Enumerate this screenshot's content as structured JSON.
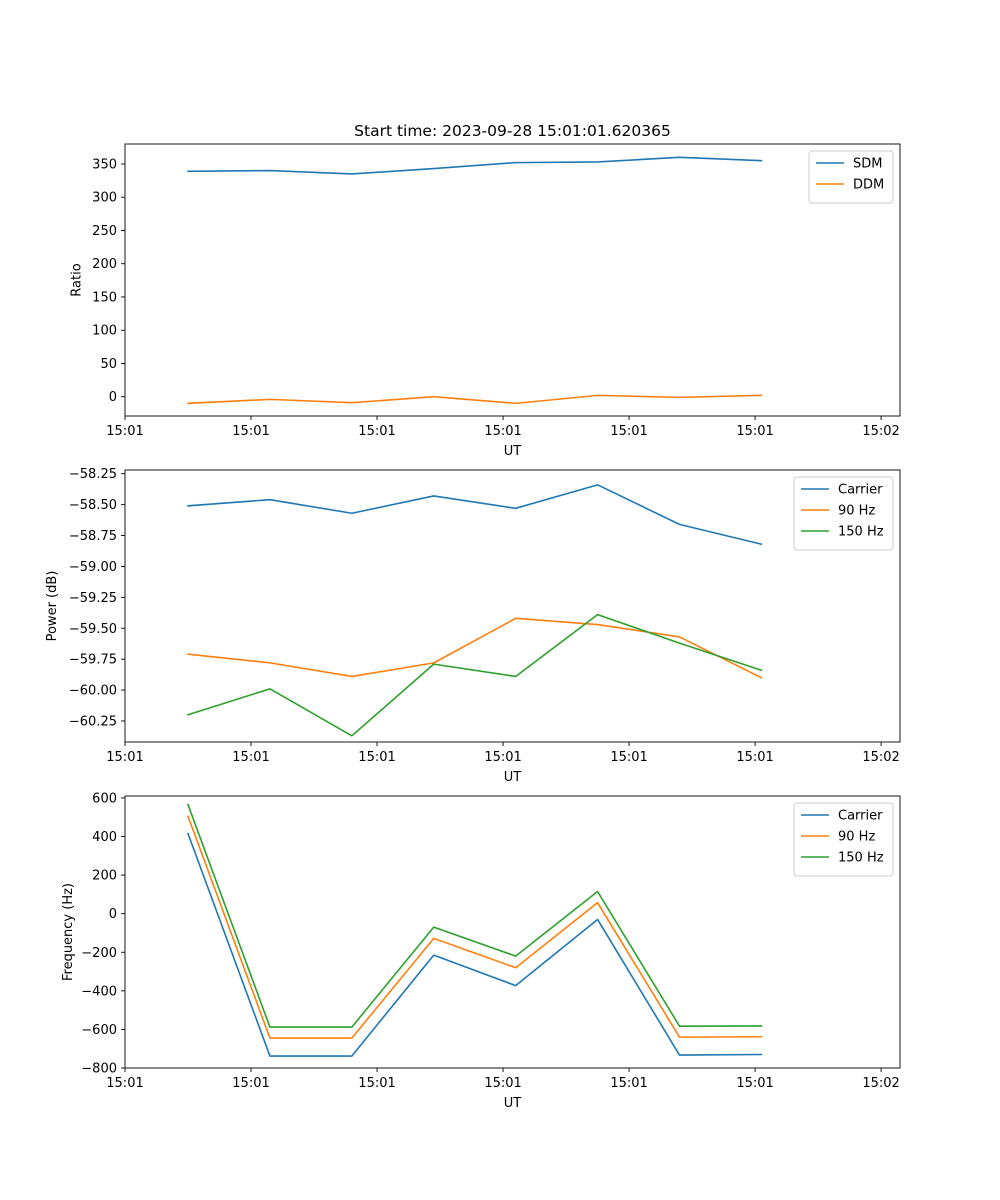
{
  "figure_title": "Start time: 2023-09-28 15:01:01.620365",
  "chart_data": [
    {
      "type": "line",
      "title": "Start time: 2023-09-28 15:01:01.620365",
      "xlabel": "UT",
      "ylabel": "Ratio",
      "xlim": [
        0,
        6.15
      ],
      "xticks": [
        0,
        1,
        2,
        3,
        4,
        5,
        6
      ],
      "xtick_labels": [
        "15:01",
        "15:01",
        "15:01",
        "15:01",
        "15:01",
        "15:01",
        "15:02"
      ],
      "ylim": [
        -29,
        380
      ],
      "yticks": [
        0,
        50,
        100,
        150,
        200,
        250,
        300,
        350
      ],
      "ytick_labels": [
        "0",
        "50",
        "100",
        "150",
        "200",
        "250",
        "300",
        "350"
      ],
      "legend_location": "upper right",
      "x": [
        0.5,
        1.15,
        1.8,
        2.45,
        3.1,
        3.75,
        4.4,
        5.05
      ],
      "series": [
        {
          "name": "SDM",
          "color": "#1f77b4",
          "values": [
            339,
            340,
            335,
            343,
            352,
            353,
            360,
            355
          ]
        },
        {
          "name": "DDM",
          "color": "#ff7f0e",
          "values": [
            -10,
            -4,
            -9,
            0,
            -10,
            2,
            -1,
            2
          ]
        }
      ]
    },
    {
      "type": "line",
      "title": "",
      "xlabel": "UT",
      "ylabel": "Power (dB)",
      "xlim": [
        0,
        6.15
      ],
      "xticks": [
        0,
        1,
        2,
        3,
        4,
        5,
        6
      ],
      "xtick_labels": [
        "15:01",
        "15:01",
        "15:01",
        "15:01",
        "15:01",
        "15:01",
        "15:02"
      ],
      "ylim": [
        -60.42,
        -58.22
      ],
      "yticks": [
        -60.25,
        -60.0,
        -59.75,
        -59.5,
        -59.25,
        -59.0,
        -58.75,
        -58.5,
        -58.25
      ],
      "ytick_labels": [
        "−60.25",
        "−60.00",
        "−59.75",
        "−59.50",
        "−59.25",
        "−59.00",
        "−58.75",
        "−58.50",
        "−58.25"
      ],
      "legend_location": "upper right",
      "x": [
        0.5,
        1.15,
        1.8,
        2.45,
        3.1,
        3.75,
        4.4,
        5.05
      ],
      "series": [
        {
          "name": "Carrier",
          "color": "#1f77b4",
          "values": [
            -58.51,
            -58.46,
            -58.57,
            -58.43,
            -58.53,
            -58.34,
            -58.66,
            -58.82
          ]
        },
        {
          "name": "90 Hz",
          "color": "#ff7f0e",
          "values": [
            -59.71,
            -59.78,
            -59.89,
            -59.78,
            -59.42,
            -59.47,
            -59.57,
            -59.9
          ]
        },
        {
          "name": "150 Hz",
          "color": "#2ca02c",
          "values": [
            -60.2,
            -59.99,
            -60.37,
            -59.79,
            -59.89,
            -59.39,
            -59.62,
            -59.84
          ]
        }
      ]
    },
    {
      "type": "line",
      "title": "",
      "xlabel": "UT",
      "ylabel": "Frequency (Hz)",
      "xlim": [
        0,
        6.15
      ],
      "xticks": [
        0,
        1,
        2,
        3,
        4,
        5,
        6
      ],
      "xtick_labels": [
        "15:01",
        "15:01",
        "15:01",
        "15:01",
        "15:01",
        "15:01",
        "15:02"
      ],
      "ylim": [
        -800,
        610
      ],
      "yticks": [
        -800,
        -600,
        -400,
        -200,
        0,
        200,
        400,
        600
      ],
      "ytick_labels": [
        "−800",
        "−600",
        "−400",
        "−200",
        "0",
        "200",
        "400",
        "600"
      ],
      "legend_location": "upper right",
      "x": [
        0.5,
        1.15,
        1.8,
        2.45,
        3.1,
        3.75,
        4.4,
        5.05
      ],
      "series": [
        {
          "name": "Carrier",
          "color": "#1f77b4",
          "values": [
            415,
            -738,
            -738,
            -215,
            -373,
            -30,
            -733,
            -730
          ]
        },
        {
          "name": "90 Hz",
          "color": "#ff7f0e",
          "values": [
            505,
            -645,
            -645,
            -128,
            -280,
            57,
            -640,
            -638
          ]
        },
        {
          "name": "150 Hz",
          "color": "#2ca02c",
          "values": [
            565,
            -588,
            -588,
            -70,
            -220,
            115,
            -583,
            -582
          ]
        }
      ]
    }
  ]
}
